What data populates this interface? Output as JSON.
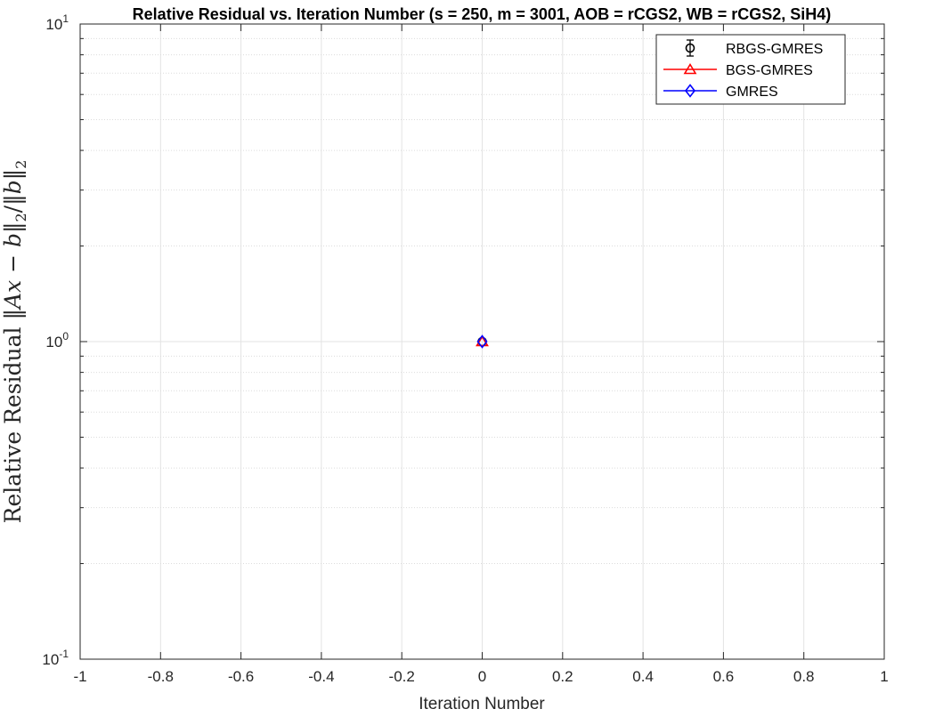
{
  "chart_data": {
    "type": "line",
    "title": "Relative Residual vs. Iteration Number (s = 250, m = 3001, AOB = rCGS2, WB = rCGS2, SiH4)",
    "xlabel": "Iteration Number",
    "ylabel": "Relative Residual ‖Ax − b‖₂/‖b‖₂",
    "xlim": [
      -1,
      1
    ],
    "ylim": [
      0.1,
      10
    ],
    "yscale": "log",
    "grid": true,
    "legend_position": "top-right",
    "x_ticks": [
      "-1",
      "-0.8",
      "-0.6",
      "-0.4",
      "-0.2",
      "0",
      "0.2",
      "0.4",
      "0.6",
      "0.8",
      "1"
    ],
    "y_ticks": [
      {
        "base": "10",
        "exp": "-1"
      },
      {
        "base": "10",
        "exp": "0"
      },
      {
        "base": "10",
        "exp": "1"
      }
    ],
    "series": [
      {
        "name": "RBGS-GMRES",
        "color": "#000000",
        "marker": "circle",
        "x": [
          0
        ],
        "y": [
          1.0
        ]
      },
      {
        "name": "BGS-GMRES",
        "color": "#ff0000",
        "marker": "triangle",
        "x": [
          0
        ],
        "y": [
          1.0
        ]
      },
      {
        "name": "GMRES",
        "color": "#0000ff",
        "marker": "diamond",
        "x": [
          0
        ],
        "y": [
          1.0
        ]
      }
    ]
  }
}
